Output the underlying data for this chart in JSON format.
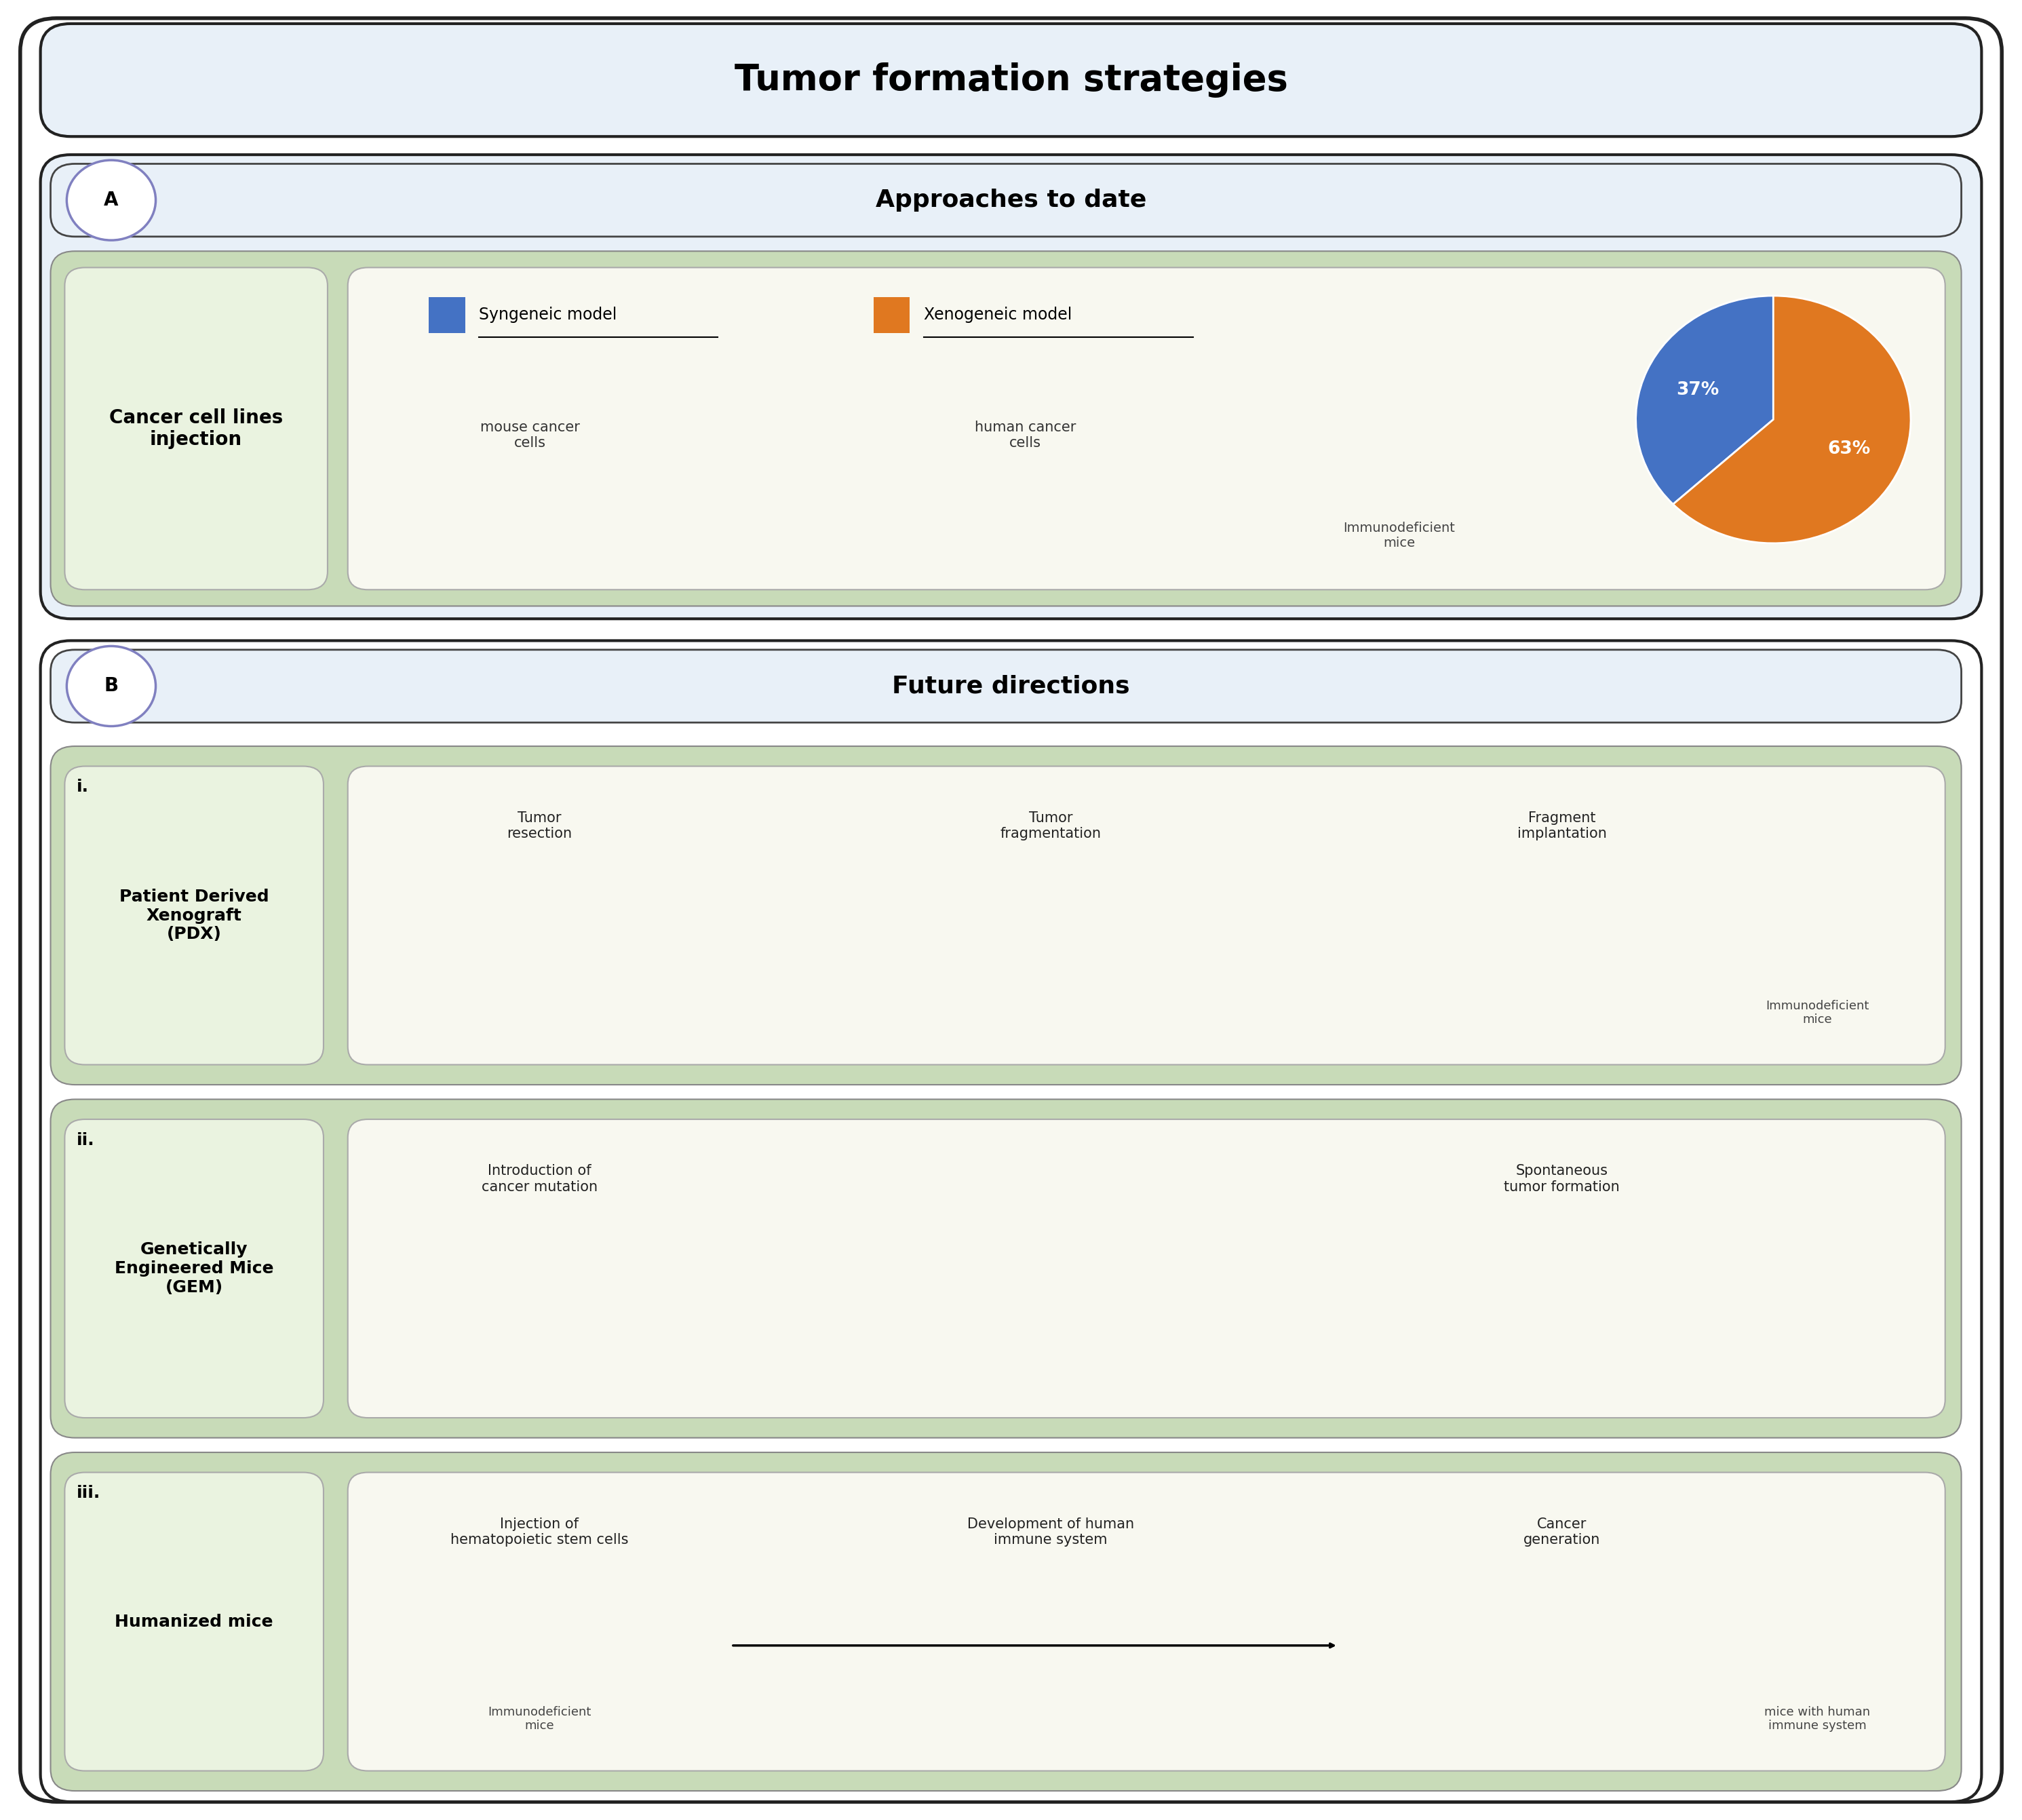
{
  "title": "Tumor formation strategies",
  "title_bg": "#e8f0f8",
  "title_fontsize": 38,
  "section_A_label": "A",
  "section_A_title": "Approaches to date",
  "section_A_bg": "#e8f0f8",
  "section_B_label": "B",
  "section_B_title": "Future directions",
  "section_B_bg": "#e8f0f8",
  "outer_bg": "#ffffff",
  "green_bg": "#c8dbb8",
  "lighter_green_bg": "#eaf3e0",
  "pie_blue": "#4472c4",
  "pie_orange": "#e07820",
  "pie_blue_pct": 37,
  "pie_orange_pct": 63,
  "legend_blue_label": "Syngeneic model",
  "legend_orange_label": "Xenogeneic model",
  "row_labels": [
    "Cancer cell lines\ninjection",
    "Patient Derived\nXenograft\n(PDX)",
    "Genetically\nEngineered Mice\n(GEM)",
    "Humanized mice"
  ],
  "section_labels": [
    "i.",
    "ii.",
    "iii."
  ],
  "row_left_txt": [
    "mouse cancer\ncells",
    "Tumor\nresection",
    "Introduction of\ncancer mutation",
    "Injection of\nhematopoietic stem cells"
  ],
  "row_mid_txt": [
    "human cancer\ncells",
    "Tumor\nfragmentation",
    "",
    "Development of human\nimmune system"
  ],
  "row_right_txt": [
    "",
    "Fragment\nimplantation",
    "Spontaneous\ntumor formation",
    "Cancer\ngeneration"
  ],
  "row_right_cap": [
    "Immunodeficient\nmice",
    "Immunodeficient\nmice",
    "",
    "mice with human\nimmune system"
  ],
  "row_left_cap": [
    "",
    "",
    "",
    "Immunodeficient\nmice"
  ]
}
